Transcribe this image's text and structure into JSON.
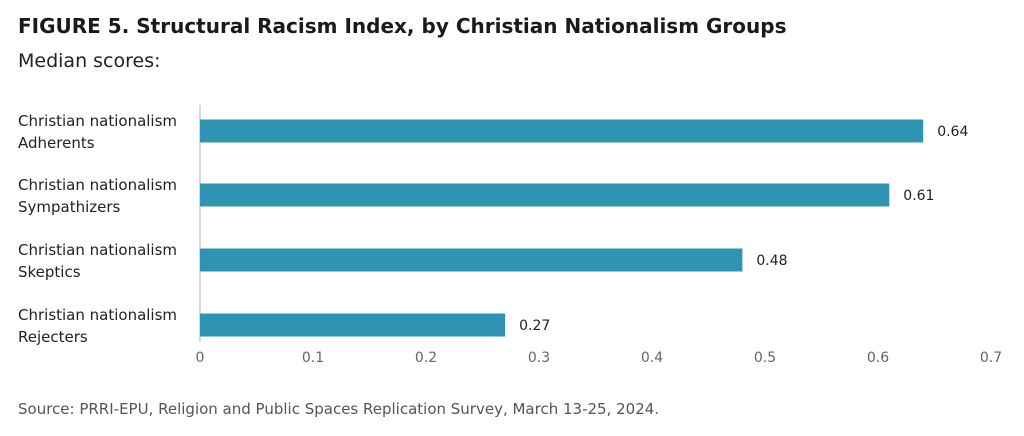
{
  "header": {
    "title": "FIGURE 5. Structural Racism Index, by Christian Nationalism Groups",
    "subtitle": "Median scores:"
  },
  "footer": {
    "source": "Source: PRRI-EPU, Religion and Public Spaces Replication Survey, March 13-25, 2024."
  },
  "colors": {
    "bar": "#2f93b3",
    "axis": "#cccccc"
  },
  "chart_data": {
    "type": "bar",
    "orientation": "horizontal",
    "title": "FIGURE 5. Structural Racism Index, by Christian Nationalism Groups",
    "subtitle": "Median scores:",
    "categories": [
      [
        "Christian nationalism",
        "Adherents"
      ],
      [
        "Christian nationalism",
        "Sympathizers"
      ],
      [
        "Christian nationalism",
        "Skeptics"
      ],
      [
        "Christian nationalism",
        "Rejecters"
      ]
    ],
    "values": [
      0.64,
      0.61,
      0.48,
      0.27
    ],
    "value_labels": [
      "0.64",
      "0.61",
      "0.48",
      "0.27"
    ],
    "xlim": [
      0,
      0.7
    ],
    "xticks": [
      0,
      0.1,
      0.2,
      0.3,
      0.4,
      0.5,
      0.6,
      0.7
    ],
    "xtick_labels": [
      "0",
      "0.1",
      "0.2",
      "0.3",
      "0.4",
      "0.5",
      "0.6",
      "0.7"
    ],
    "grid": false,
    "legend": "none"
  }
}
